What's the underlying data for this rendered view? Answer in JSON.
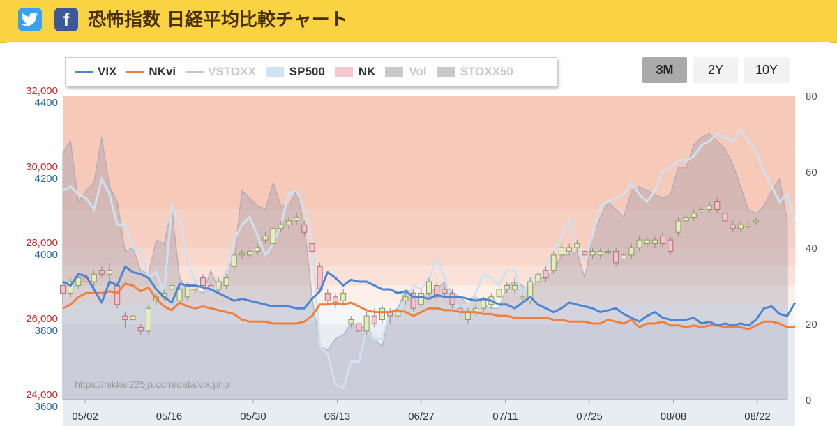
{
  "header": {
    "title": "恐怖指数 日経平均比較チャート",
    "twitter_icon": "twitter-icon",
    "facebook_icon": "facebook-icon",
    "facebook_glyph": "f",
    "bg_color": "#f9d342"
  },
  "legend": [
    {
      "label": "VIX",
      "kind": "line",
      "color": "#4a86d4",
      "active": true
    },
    {
      "label": "NKvi",
      "kind": "line",
      "color": "#f07f3c",
      "active": true
    },
    {
      "label": "VSTOXX",
      "kind": "line",
      "color": "#c4c4c4",
      "active": false
    },
    {
      "label": "SP500",
      "kind": "box",
      "color": "#cfe2f1",
      "active": true
    },
    {
      "label": "NK",
      "kind": "box",
      "color": "#f7c7cf",
      "active": true
    },
    {
      "label": "Vol",
      "kind": "box",
      "color": "#c9c9c9",
      "active": false
    },
    {
      "label": "STOXX50",
      "kind": "box",
      "color": "#c9c9c9",
      "active": false
    }
  ],
  "range_buttons": [
    {
      "label": "3M",
      "selected": true
    },
    {
      "label": "2Y",
      "selected": false
    },
    {
      "label": "10Y",
      "selected": false
    }
  ],
  "watermark": "https://nikkei225jp.com/data/vix.php",
  "chart_data": {
    "type": "line",
    "x_labels": [
      "05/02",
      "05/16",
      "05/30",
      "06/13",
      "06/27",
      "07/11",
      "07/25",
      "08/08",
      "08/22"
    ],
    "nk_axis": {
      "ticks": [
        "24,000",
        "26,000",
        "28,000",
        "30,000",
        "32,000"
      ],
      "range": [
        24000,
        32000
      ],
      "color": "#cc2b2b"
    },
    "sp_axis": {
      "ticks": [
        "3600",
        "3800",
        "4000",
        "4200",
        "4400"
      ],
      "range": [
        3600,
        4400
      ],
      "color": "#2a6aa8"
    },
    "vix_axis": {
      "ticks": [
        "0",
        "20",
        "40",
        "60",
        "80"
      ],
      "range": [
        0,
        80
      ]
    },
    "background_bands": [
      {
        "from": 0,
        "to": 20,
        "color": "#e8edf4"
      },
      {
        "from": 20,
        "to": 25,
        "color": "#f5f6f9"
      },
      {
        "from": 25,
        "to": 30,
        "color": "#fdf0ea"
      },
      {
        "from": 30,
        "to": 35,
        "color": "#fbe2d8"
      },
      {
        "from": 35,
        "to": 40,
        "color": "#f9d8cb"
      },
      {
        "from": 40,
        "to": 50,
        "color": "#f8d0c2"
      },
      {
        "from": 50,
        "to": 80,
        "color": "#f7c9b9"
      }
    ],
    "series": [
      {
        "name": "VIX",
        "color": "#4a86d4",
        "values": [
          31.0,
          30.0,
          33.0,
          32.5,
          29.0,
          25.5,
          31.0,
          30.0,
          35.0,
          33.5,
          33.0,
          32.0,
          29.0,
          27.0,
          25.5,
          30.5,
          30.0,
          30.0,
          29.5,
          29.0,
          28.0,
          27.0,
          26.0,
          26.5,
          26.0,
          25.5,
          25.0,
          24.5,
          24.5,
          24.5,
          24.0,
          24.0,
          26.5,
          28.5,
          33.5,
          32.0,
          30.0,
          31.5,
          31.0,
          31.0,
          30.0,
          29.0,
          29.0,
          28.0,
          28.5,
          27.0,
          27.0,
          26.5,
          27.5,
          27.0,
          27.0,
          27.0,
          26.5,
          26.0,
          26.5,
          26.0,
          25.0,
          25.0,
          24.0,
          25.5,
          27.0,
          25.0,
          24.0,
          23.0,
          24.0,
          25.5,
          25.0,
          24.5,
          24.0,
          23.0,
          23.5,
          24.0,
          22.5,
          21.5,
          20.5,
          22.0,
          23.0,
          21.5,
          21.0,
          21.0,
          21.0,
          21.5,
          20.0,
          20.5,
          19.5,
          20.0,
          19.5,
          20.0,
          19.5,
          21.0,
          24.0,
          24.5,
          22.5,
          22.0,
          25.5
        ]
      },
      {
        "name": "NKvi",
        "color": "#f07f3c",
        "values": [
          24.0,
          25.0,
          27.0,
          28.0,
          28.0,
          28.0,
          28.5,
          28.0,
          30.5,
          30.0,
          28.5,
          29.5,
          26.5,
          24.5,
          23.5,
          25.5,
          24.5,
          24.0,
          24.5,
          24.0,
          23.5,
          23.0,
          22.5,
          21.0,
          20.5,
          20.5,
          20.5,
          20.0,
          20.0,
          20.0,
          20.0,
          20.5,
          22.0,
          25.0,
          25.0,
          25.5,
          25.0,
          25.5,
          24.5,
          23.5,
          23.0,
          23.0,
          23.0,
          23.5,
          23.0,
          22.0,
          23.0,
          24.0,
          24.0,
          23.5,
          23.5,
          23.0,
          23.0,
          23.0,
          22.5,
          22.5,
          22.0,
          22.0,
          21.5,
          21.5,
          21.5,
          21.5,
          21.5,
          21.0,
          21.0,
          20.5,
          20.5,
          20.5,
          20.0,
          20.0,
          21.0,
          20.5,
          20.0,
          21.0,
          19.0,
          20.0,
          20.0,
          20.5,
          19.5,
          19.5,
          19.0,
          19.5,
          19.0,
          19.5,
          19.5,
          19.0,
          19.0,
          19.0,
          18.5,
          19.5,
          20.5,
          20.5,
          20.0,
          19.0,
          19.0
        ]
      },
      {
        "name": "SP500",
        "color": "#cfe2f1",
        "values": [
          4150,
          4160,
          4140,
          4130,
          4100,
          4180,
          4140,
          4060,
          4060,
          4000,
          3990,
          3920,
          3935,
          3880,
          4110,
          4070,
          3960,
          3910,
          3920,
          3880,
          3900,
          3930,
          4020,
          4060,
          4080,
          4030,
          3980,
          4010,
          4060,
          4140,
          4150,
          4100,
          4020,
          3740,
          3720,
          3640,
          3630,
          3700,
          3700,
          3780,
          3760,
          3760,
          3830,
          3830,
          3860,
          3900,
          3890,
          3920,
          3970,
          3920,
          3860,
          3840,
          3850,
          3880,
          3930,
          3920,
          3900,
          3940,
          3940,
          3870,
          3920,
          3920,
          3950,
          3990,
          4030,
          4070,
          4000,
          3970,
          4030,
          4110,
          4120,
          4130,
          4140,
          4170,
          4140,
          4120,
          4150,
          4200,
          4210,
          4230,
          4230,
          4240,
          4270,
          4280,
          4300,
          4290,
          4280,
          4310,
          4280,
          4250,
          4200,
          4160,
          4120,
          4140,
          4060
        ]
      },
      {
        "name": "Vol",
        "color": "#c9c9c9",
        "values": [
          65,
          68,
          52,
          55,
          57,
          69,
          56,
          52,
          39,
          40,
          34,
          33,
          42,
          41,
          50,
          32,
          29,
          29,
          28,
          34,
          29,
          34,
          37,
          55,
          53,
          51,
          50,
          57,
          51,
          51,
          55,
          46,
          27,
          14,
          13,
          16,
          17,
          20,
          19,
          19,
          16,
          14,
          23,
          24,
          29,
          28,
          26,
          29,
          29,
          31,
          28,
          27,
          25,
          27,
          25,
          24,
          24,
          30,
          31,
          30,
          28,
          32,
          32,
          34,
          38,
          38,
          39,
          32,
          43,
          48,
          52,
          50,
          48,
          55,
          56,
          55,
          54,
          53,
          54,
          61,
          61,
          67,
          69,
          70,
          68,
          66,
          62,
          56,
          50,
          49,
          51,
          55,
          58,
          47
        ]
      }
    ],
    "nk_candles": [
      [
        27000,
        26800,
        26500,
        27100
      ],
      [
        26800,
        27100,
        26700,
        27200
      ],
      [
        27000,
        27200,
        26900,
        27300
      ],
      [
        27200,
        27100,
        27000,
        27400
      ],
      [
        27100,
        27300,
        26900,
        27400
      ],
      [
        27400,
        27300,
        27200,
        27500
      ],
      [
        27300,
        27400,
        27100,
        27600
      ],
      [
        27000,
        26500,
        26400,
        27100
      ],
      [
        26200,
        26100,
        25900,
        26300
      ],
      [
        26100,
        26200,
        26000,
        26300
      ],
      [
        25900,
        25800,
        25700,
        26000
      ],
      [
        25800,
        26400,
        25700,
        26500
      ],
      [
        26600,
        26700,
        26500,
        26800
      ],
      [
        26700,
        26800,
        26600,
        26900
      ],
      [
        26900,
        27000,
        26800,
        27100
      ],
      [
        26600,
        26900,
        26500,
        27000
      ],
      [
        26700,
        27000,
        26600,
        27100
      ],
      [
        26900,
        27000,
        26800,
        27100
      ],
      [
        27200,
        27000,
        26900,
        27300
      ],
      [
        27000,
        26900,
        26800,
        27100
      ],
      [
        26900,
        27100,
        26800,
        27200
      ],
      [
        27000,
        27200,
        26900,
        27300
      ],
      [
        27500,
        27800,
        27400,
        27900
      ],
      [
        27800,
        27850,
        27700,
        27950
      ],
      [
        27800,
        27900,
        27700,
        28000
      ],
      [
        27900,
        28000,
        27800,
        28100
      ],
      [
        28200,
        28300,
        28100,
        28400
      ],
      [
        28100,
        28500,
        28000,
        28600
      ],
      [
        28500,
        28600,
        28400,
        28700
      ],
      [
        28600,
        28700,
        28500,
        28800
      ],
      [
        28700,
        28800,
        28600,
        28900
      ],
      [
        28600,
        28400,
        28300,
        28700
      ],
      [
        28100,
        27900,
        27800,
        28200
      ],
      [
        27500,
        26900,
        26800,
        27600
      ],
      [
        26800,
        26600,
        26500,
        26900
      ],
      [
        26700,
        26500,
        26400,
        26800
      ],
      [
        26600,
        26800,
        26500,
        26900
      ],
      [
        26000,
        26100,
        25900,
        26200
      ],
      [
        26000,
        25800,
        25600,
        26100
      ],
      [
        25800,
        26200,
        25700,
        26300
      ],
      [
        26200,
        26000,
        25900,
        26400
      ],
      [
        26100,
        26400,
        26000,
        26500
      ],
      [
        26300,
        26200,
        26000,
        26400
      ],
      [
        26200,
        26300,
        26100,
        26400
      ],
      [
        26600,
        26700,
        26500,
        26800
      ],
      [
        26800,
        26400,
        26300,
        26900
      ],
      [
        26500,
        26800,
        26400,
        26900
      ],
      [
        26800,
        27100,
        26700,
        27200
      ],
      [
        27000,
        26700,
        26600,
        27100
      ],
      [
        26900,
        26800,
        26700,
        27000
      ],
      [
        26800,
        26500,
        26400,
        26900
      ],
      [
        26400,
        26300,
        26100,
        26500
      ],
      [
        26100,
        26300,
        26000,
        26400
      ],
      [
        26300,
        26400,
        26200,
        26500
      ],
      [
        26400,
        26600,
        26300,
        26700
      ],
      [
        26500,
        26700,
        26400,
        26800
      ],
      [
        26700,
        26900,
        26600,
        27000
      ],
      [
        26900,
        27000,
        26800,
        27100
      ],
      [
        26900,
        27000,
        26800,
        27200
      ],
      [
        26700,
        26700,
        26600,
        26800
      ],
      [
        26600,
        27100,
        26500,
        27200
      ],
      [
        27100,
        27300,
        27000,
        27400
      ],
      [
        27400,
        27200,
        27100,
        27500
      ],
      [
        27400,
        27800,
        27300,
        27900
      ],
      [
        27800,
        28000,
        27700,
        28100
      ],
      [
        27900,
        28000,
        27800,
        28100
      ],
      [
        28000,
        28100,
        27900,
        28200
      ],
      [
        27900,
        27800,
        27700,
        28000
      ],
      [
        27800,
        27900,
        27700,
        28000
      ],
      [
        27800,
        27900,
        27700,
        28000
      ],
      [
        27900,
        27900,
        27800,
        28000
      ],
      [
        27900,
        27600,
        27500,
        28000
      ],
      [
        27700,
        27800,
        27600,
        27900
      ],
      [
        27800,
        28000,
        27700,
        28100
      ],
      [
        28000,
        28200,
        27900,
        28300
      ],
      [
        28100,
        28200,
        28000,
        28300
      ],
      [
        28100,
        28200,
        28000,
        28300
      ],
      [
        28300,
        28100,
        28000,
        28400
      ],
      [
        28200,
        27900,
        27800,
        28300
      ],
      [
        28400,
        28700,
        28300,
        28800
      ],
      [
        28700,
        28800,
        28600,
        28900
      ],
      [
        28800,
        28900,
        28700,
        29000
      ],
      [
        29000,
        29000,
        28900,
        29100
      ],
      [
        29000,
        29100,
        28900,
        29200
      ],
      [
        29200,
        29000,
        28900,
        29300
      ],
      [
        28900,
        28700,
        28600,
        29000
      ],
      [
        28600,
        28500,
        28400,
        28700
      ],
      [
        28500,
        28600,
        28400,
        28700
      ],
      [
        28600,
        28600,
        28500,
        28700
      ],
      [
        28700,
        28700,
        28600,
        28800
      ]
    ]
  }
}
